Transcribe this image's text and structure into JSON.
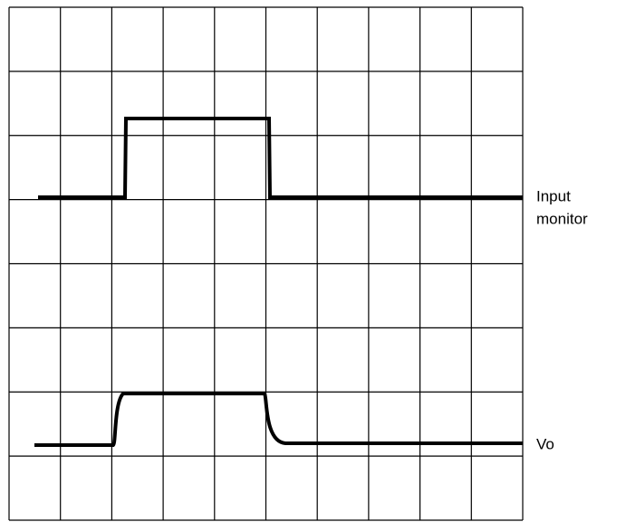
{
  "labels": [
    {
      "lines": [
        "Input",
        "monitor"
      ]
    },
    {
      "lines": [
        "Vo"
      ]
    }
  ]
}
